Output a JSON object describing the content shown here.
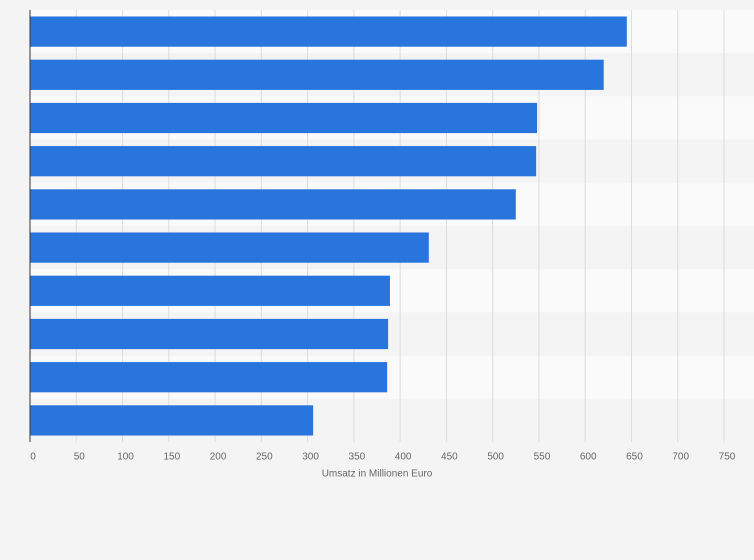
{
  "chart_data": {
    "type": "bar",
    "orientation": "horizontal",
    "x_label": "Umsatz in Millionen Euro",
    "categories": [
      null,
      null,
      null,
      null,
      null,
      null,
      null,
      null,
      null,
      null
    ],
    "values": [
      645,
      620,
      548,
      547,
      525,
      431,
      389,
      387,
      386,
      306
    ],
    "color": "#2876dd",
    "xlim": [
      0,
      750
    ],
    "xticks": [
      0,
      50,
      100,
      150,
      200,
      250,
      300,
      350,
      400,
      450,
      500,
      550,
      600,
      650,
      700,
      750
    ],
    "grid": true
  }
}
